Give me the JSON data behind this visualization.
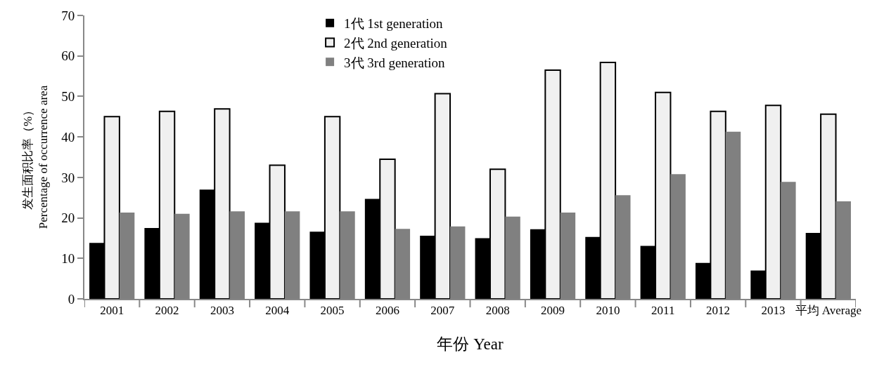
{
  "chart_data": {
    "type": "bar",
    "xlabel": "年份 Year",
    "ylabel": "发生面积比率（%）\nPercentage of occurrence area",
    "categories": [
      "2001",
      "2002",
      "2003",
      "2004",
      "2005",
      "2006",
      "2007",
      "2008",
      "2009",
      "2010",
      "2011",
      "2012",
      "2013",
      "平均 Average"
    ],
    "series": [
      {
        "name": "1代 1st generation",
        "color": "#000000",
        "values": [
          13.8,
          17.5,
          27,
          18.8,
          16.6,
          24.7,
          15.6,
          15,
          17.2,
          15.3,
          13.1,
          8.9,
          7,
          16.3
        ]
      },
      {
        "name": "2代 2nd generation",
        "color": "#f0f0f0",
        "values": [
          45,
          46.3,
          46.9,
          33,
          45,
          34.5,
          50.7,
          32,
          56.5,
          58.4,
          51,
          46.3,
          47.8,
          45.6
        ]
      },
      {
        "name": "3代 3rd generation",
        "color": "#808080",
        "values": [
          21.3,
          21,
          21.6,
          21.6,
          21.6,
          17.3,
          17.9,
          20.3,
          21.3,
          25.6,
          30.8,
          41.3,
          28.9,
          24.1
        ]
      }
    ],
    "ylim": [
      0,
      70
    ],
    "yticks": [
      0,
      10,
      20,
      30,
      40,
      50,
      60,
      70
    ],
    "grid": false,
    "legend": "top"
  }
}
